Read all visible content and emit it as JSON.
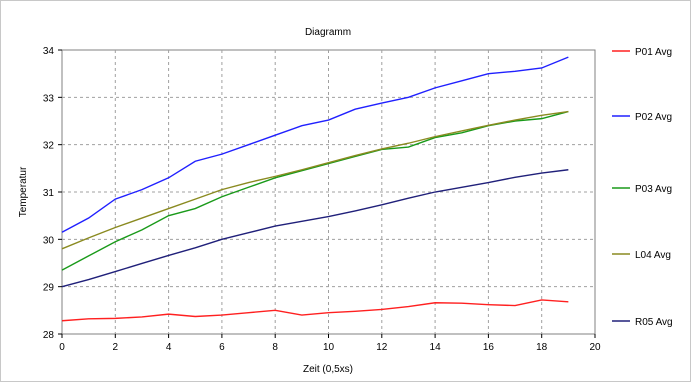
{
  "chart_data": {
    "type": "line",
    "title": "Diagramm",
    "xlabel": "Zeit (0,5xs)",
    "ylabel": "Temperatur",
    "xlim": [
      0,
      20
    ],
    "ylim": [
      28,
      34
    ],
    "xticks": [
      "0",
      "2",
      "4",
      "6",
      "8",
      "10",
      "12",
      "14",
      "16",
      "18",
      "20"
    ],
    "yticks": [
      "28",
      "29",
      "30",
      "31",
      "32",
      "33",
      "34"
    ],
    "grid": true,
    "legend_position": "right",
    "x": [
      0,
      1,
      2,
      3,
      4,
      5,
      6,
      7,
      8,
      9,
      10,
      11,
      12,
      13,
      14,
      15,
      16,
      17,
      18,
      19
    ],
    "series": [
      {
        "name": "P01 Avg",
        "color": "#ff2020",
        "values": [
          28.28,
          28.32,
          28.33,
          28.36,
          28.42,
          28.37,
          28.4,
          28.45,
          28.5,
          28.4,
          28.45,
          28.48,
          28.52,
          28.58,
          28.66,
          28.65,
          28.62,
          28.6,
          28.72,
          28.68
        ]
      },
      {
        "name": "P02 Avg",
        "color": "#2020ff",
        "values": [
          30.15,
          30.45,
          30.85,
          31.05,
          31.3,
          31.65,
          31.8,
          32.0,
          32.2,
          32.4,
          32.52,
          32.75,
          32.88,
          33.0,
          33.2,
          33.35,
          33.5,
          33.55,
          33.62,
          33.85
        ]
      },
      {
        "name": "P03 Avg",
        "color": "#1a9a1a",
        "values": [
          29.35,
          29.65,
          29.95,
          30.2,
          30.5,
          30.65,
          30.9,
          31.1,
          31.3,
          31.45,
          31.6,
          31.75,
          31.9,
          31.95,
          32.15,
          32.25,
          32.4,
          32.5,
          32.55,
          32.7
        ]
      },
      {
        "name": "L04 Avg",
        "color": "#8a8a20",
        "values": [
          29.8,
          30.03,
          30.25,
          30.45,
          30.65,
          30.85,
          31.05,
          31.2,
          31.33,
          31.47,
          31.62,
          31.77,
          31.91,
          32.03,
          32.17,
          32.29,
          32.41,
          32.52,
          32.62,
          32.7
        ]
      },
      {
        "name": "R05 Avg",
        "color": "#20207a",
        "values": [
          29.0,
          29.15,
          29.32,
          29.49,
          29.66,
          29.82,
          30.0,
          30.14,
          30.28,
          30.38,
          30.48,
          30.6,
          30.73,
          30.87,
          31.0,
          31.1,
          31.2,
          31.31,
          31.4,
          31.47
        ]
      }
    ]
  }
}
